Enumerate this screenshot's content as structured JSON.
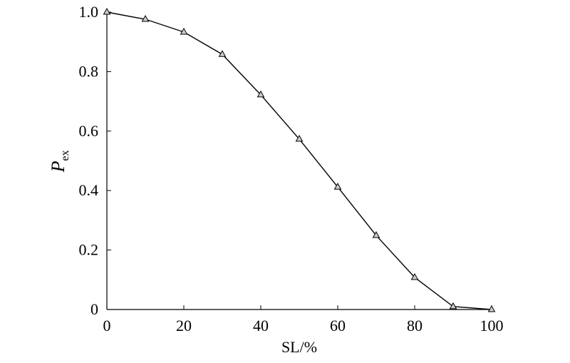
{
  "chart_data": {
    "type": "line",
    "xlabel": "SL/%",
    "ylabel": "P",
    "ylabel_subscript": "ex",
    "x": [
      0,
      10,
      20,
      30,
      40,
      50,
      60,
      70,
      80,
      90,
      100
    ],
    "series": [
      {
        "color": "#000000",
        "marker": "triangle",
        "values": [
          1.0,
          0.976,
          0.933,
          0.858,
          0.722,
          0.573,
          0.412,
          0.249,
          0.108,
          0.01,
          0.0
        ]
      }
    ],
    "xlim": [
      0,
      100
    ],
    "xticks": [
      0,
      20,
      40,
      60,
      80,
      100
    ],
    "ylim": [
      0,
      1
    ],
    "yticks": [
      0,
      0.2,
      0.4,
      0.6,
      0.8,
      {
        "value": 1,
        "label": "1.0"
      }
    ],
    "grid": false
  }
}
